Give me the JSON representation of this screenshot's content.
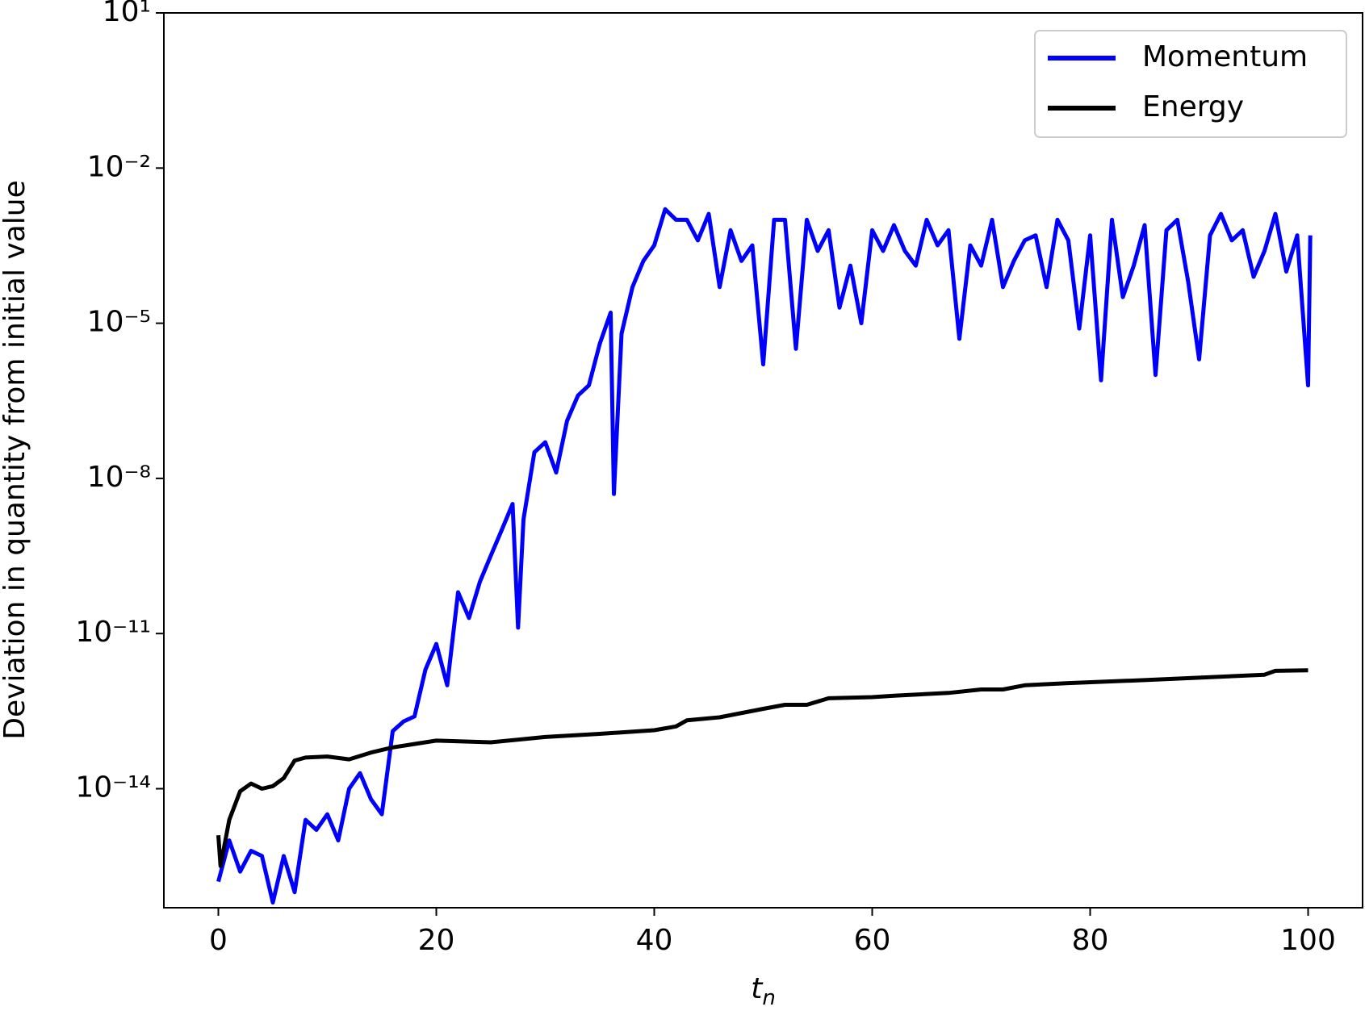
{
  "chart_data": {
    "type": "line",
    "xlabel": "tn",
    "ylabel": "Deviation in quantity from initial value",
    "xlim": [
      -5,
      105
    ],
    "ylim": [
      5e-17,
      10
    ],
    "ylog": true,
    "xticks": [
      0,
      20,
      40,
      60,
      80,
      100
    ],
    "yticks": [
      {
        "value": 10,
        "label": "10¹"
      },
      {
        "value": 0.01,
        "label": "10⁻²"
      },
      {
        "value": 1e-05,
        "label": "10⁻⁵"
      },
      {
        "value": 1e-08,
        "label": "10⁻⁸"
      },
      {
        "value": 1e-11,
        "label": "10⁻¹¹"
      },
      {
        "value": 1e-14,
        "label": "10⁻¹⁴"
      }
    ],
    "legend": "upper right",
    "series": [
      {
        "name": "Momentum",
        "color": "#0000ff",
        "x": [
          0,
          1,
          2,
          3,
          4,
          5,
          6,
          7,
          8,
          9,
          10,
          11,
          12,
          13,
          14,
          15,
          16,
          17,
          18,
          19,
          20,
          21,
          22,
          23,
          24,
          25,
          26,
          27,
          27.5,
          28,
          29,
          30,
          31,
          32,
          33,
          34,
          35,
          36,
          36.3,
          37,
          38,
          39,
          40,
          41,
          42,
          43,
          44,
          45,
          46,
          47,
          48,
          49,
          50,
          51,
          52,
          53,
          54,
          55,
          56,
          57,
          58,
          59,
          60,
          61,
          62,
          63,
          64,
          65,
          66,
          67,
          68,
          69,
          70,
          71,
          72,
          73,
          74,
          75,
          76,
          77,
          78,
          79,
          80,
          81,
          82,
          83,
          84,
          85,
          86,
          87,
          88,
          89,
          90,
          91,
          92,
          93,
          94,
          95,
          96,
          97,
          98,
          99,
          100,
          100.2
        ],
        "values": [
          1.6e-16,
          1e-15,
          2.5e-16,
          6.3e-16,
          5e-16,
          6.3e-17,
          5e-16,
          1e-16,
          2.5e-15,
          1.6e-15,
          3.2e-15,
          1e-15,
          1e-14,
          2e-14,
          6.3e-15,
          3.2e-15,
          1.3e-13,
          2e-13,
          2.5e-13,
          2e-12,
          6.3e-12,
          1e-12,
          6.3e-11,
          2e-11,
          1e-10,
          3.2e-10,
          1e-09,
          3.2e-09,
          1.3e-11,
          1.6e-09,
          3.2e-08,
          5e-08,
          1.3e-08,
          1.3e-07,
          4e-07,
          6.3e-07,
          4e-06,
          1.6e-05,
          5e-09,
          6.3e-06,
          5e-05,
          0.00016,
          0.00032,
          0.0016,
          0.001,
          0.001,
          0.0004,
          0.0013,
          5e-05,
          0.00063,
          0.00016,
          0.00032,
          1.6e-06,
          0.001,
          0.001,
          3.2e-06,
          0.001,
          0.00025,
          0.00063,
          2e-05,
          0.00013,
          1e-05,
          0.00063,
          0.00025,
          0.00079,
          0.00025,
          0.00013,
          0.001,
          0.00032,
          0.00063,
          5e-06,
          0.00032,
          0.00013,
          0.001,
          5e-05,
          0.00016,
          0.0004,
          0.0005,
          5e-05,
          0.001,
          0.0004,
          7.9e-06,
          0.0005,
          7.9e-07,
          0.001,
          3.2e-05,
          0.00013,
          0.00079,
          1e-06,
          0.00063,
          0.001,
          6.3e-05,
          2e-06,
          0.0005,
          0.0013,
          0.0004,
          0.00063,
          7.9e-05,
          0.00025,
          0.0013,
          0.0001,
          0.0005,
          6.3e-07,
          0.0005
        ]
      },
      {
        "name": "Energy",
        "color": "#000000",
        "x": [
          0,
          0.2,
          1,
          2,
          3,
          4,
          5,
          6,
          7,
          8,
          10,
          12,
          14,
          16,
          20,
          25,
          30,
          35,
          40,
          42,
          43,
          46,
          50,
          52,
          54,
          56,
          60,
          62,
          67,
          70,
          72,
          74,
          78,
          85,
          90,
          96,
          97,
          100
        ],
        "values": [
          1.26e-15,
          3.2e-16,
          2.5e-15,
          8.9e-15,
          1.26e-14,
          1e-14,
          1.12e-14,
          1.6e-14,
          3.5e-14,
          4e-14,
          4.2e-14,
          3.7e-14,
          5e-14,
          6.3e-14,
          8.5e-14,
          7.9e-14,
          1e-13,
          1.15e-13,
          1.35e-13,
          1.6e-13,
          2.1e-13,
          2.4e-13,
          3.5e-13,
          4.2e-13,
          4.2e-13,
          5.6e-13,
          5.9e-13,
          6.3e-13,
          7.1e-13,
          8.3e-13,
          8.3e-13,
          1e-12,
          1.1e-12,
          1.26e-12,
          1.4e-12,
          1.6e-12,
          1.9e-12,
          1.95e-12
        ]
      }
    ]
  }
}
